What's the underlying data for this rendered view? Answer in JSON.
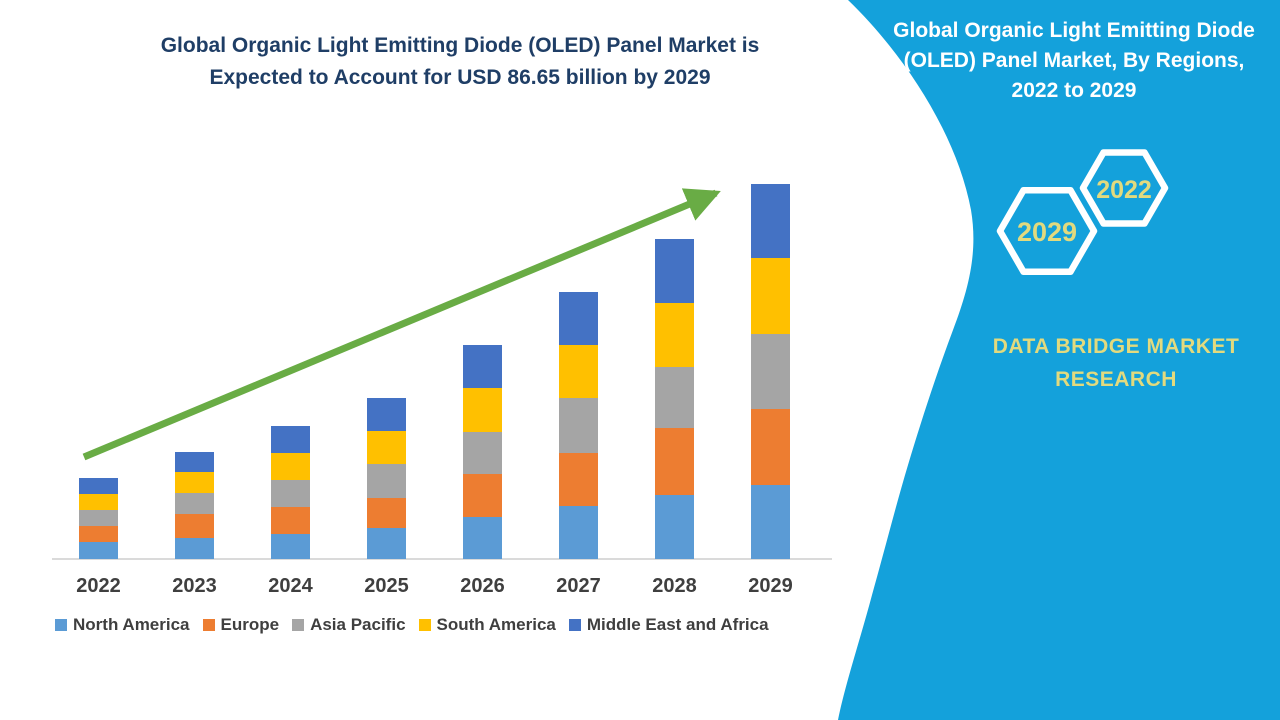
{
  "page": {
    "background": "#FFFFFF"
  },
  "left_section": {
    "title_lines": [
      "Global Organic Light Emitting Diode (OLED) Panel Market is",
      "Expected to Account for USD 86.65 billion by 2029"
    ],
    "title_color": "#1F3E66"
  },
  "right_panel": {
    "background_color": "#14A1DB",
    "title_lines": [
      "Global Organic Light Emitting Diode",
      "(OLED) Panel Market, By Regions,",
      "2022 to 2029"
    ],
    "title_color": "#FFFFFF",
    "accent_text_color": "#E2DA7E",
    "hexagon_badges": [
      {
        "label": "2029"
      },
      {
        "label": "2022"
      }
    ],
    "brand_lines": [
      "DATA BRIDGE MARKET",
      "RESEARCH"
    ]
  },
  "chart_data": {
    "type": "bar",
    "stacked": true,
    "title": "Global Organic Light Emitting Diode (OLED) Panel Market is Expected to Account for USD 86.65 billion by 2029",
    "unit": "USD billion",
    "categories": [
      "2022",
      "2023",
      "2024",
      "2025",
      "2026",
      "2027",
      "2028",
      "2029"
    ],
    "series": [
      {
        "name": "North America",
        "color": "#5B9BD5",
        "values": [
          3.9,
          4.9,
          5.8,
          7.2,
          9.7,
          12.2,
          14.8,
          17.1
        ]
      },
      {
        "name": "Europe",
        "color": "#ED7D31",
        "values": [
          3.7,
          5.5,
          6.2,
          6.9,
          9.9,
          12.2,
          15.5,
          17.6
        ]
      },
      {
        "name": "Asia Pacific",
        "color": "#A5A5A5",
        "values": [
          3.7,
          4.9,
          6.2,
          7.9,
          9.7,
          12.7,
          14.1,
          17.3
        ]
      },
      {
        "name": "South America",
        "color": "#FFC000",
        "values": [
          3.7,
          4.9,
          6.2,
          7.6,
          10.2,
          12.2,
          14.8,
          17.6
        ]
      },
      {
        "name": "Middle East and Africa",
        "color": "#4472C4",
        "values": [
          3.7,
          4.6,
          6.2,
          7.6,
          9.9,
          12.2,
          14.8,
          17.1
        ]
      }
    ],
    "totals_estimated": [
      18.7,
      24.8,
      30.6,
      37.2,
      49.4,
      61.5,
      74.0,
      86.65
    ],
    "ylim": [
      0,
      90
    ],
    "grid": false,
    "axis_labels_shown": "x-only",
    "legend_position": "bottom",
    "trend_arrow": true,
    "arrow_color": "#69AC45"
  }
}
